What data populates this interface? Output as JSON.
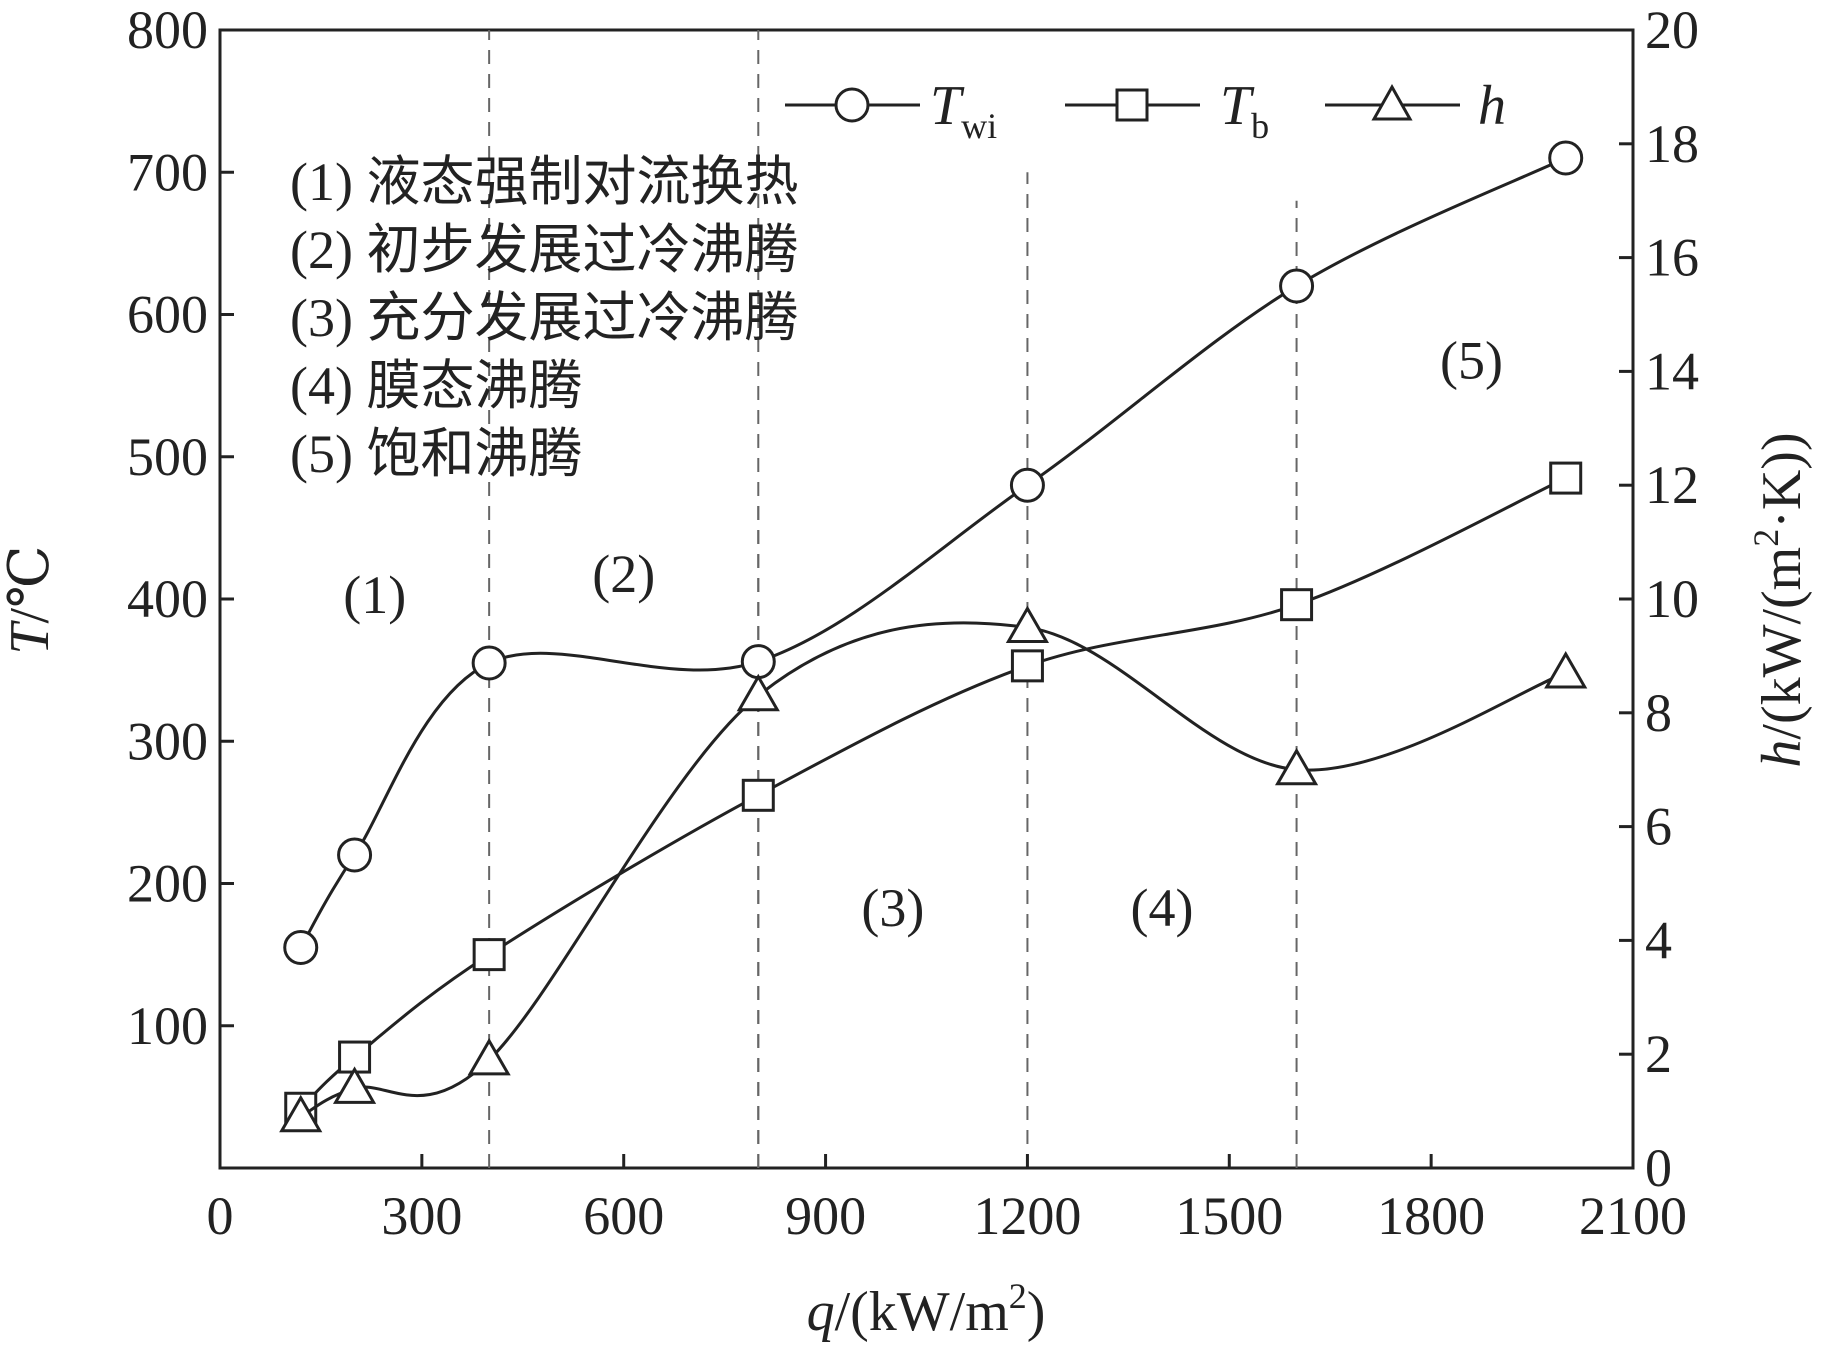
{
  "chart_data": {
    "type": "line",
    "x": [
      120,
      200,
      400,
      800,
      1200,
      1600,
      2000
    ],
    "xlabel": {
      "var": "q",
      "rest": "/(kW/m",
      "sup": "2",
      "close": ")"
    },
    "ylabel_left": {
      "var": "T",
      "rest": "/℃"
    },
    "ylabel_right": {
      "var": "h",
      "rest": "/(kW/(m",
      "sup": "2",
      "tail": "·K))"
    },
    "xlim": [
      0,
      2100
    ],
    "ylim_left": [
      0,
      800
    ],
    "ylim_right": [
      0,
      20
    ],
    "x_ticks": [
      0,
      300,
      600,
      900,
      1200,
      1500,
      1800,
      2100
    ],
    "y_left_ticks": [
      100,
      200,
      300,
      400,
      500,
      600,
      700,
      800
    ],
    "y_right_ticks": [
      0,
      2,
      4,
      6,
      8,
      10,
      12,
      14,
      16,
      18,
      20
    ],
    "grid": false,
    "legend_position": "top-right",
    "series": [
      {
        "name": "T",
        "subscript": "wi",
        "axis": "left",
        "marker": "circle",
        "values": [
          155,
          220,
          355,
          356,
          480,
          620,
          710
        ]
      },
      {
        "name": "T",
        "subscript": "b",
        "axis": "left",
        "marker": "square",
        "values": [
          42,
          78,
          150,
          262,
          353,
          396,
          485
        ]
      },
      {
        "name": "h",
        "subscript": "",
        "axis": "right",
        "marker": "triangle",
        "values": [
          0.9,
          1.4,
          1.9,
          8.3,
          9.5,
          7.0,
          8.7
        ]
      }
    ],
    "dividers": [
      {
        "x": 400,
        "y_from": 0,
        "y_to": 800
      },
      {
        "x": 800,
        "y_from": 0,
        "y_to": 800
      },
      {
        "x": 800,
        "y_from": 0,
        "y_to": 470
      },
      {
        "x": 1200,
        "y_from": 0,
        "y_to": 700
      },
      {
        "x": 1600,
        "y_from": 0,
        "y_to": 680
      }
    ],
    "region_labels": [
      {
        "label": "(1)",
        "x": 230,
        "y": 390
      },
      {
        "label": "(2)",
        "x": 600,
        "y": 405
      },
      {
        "label": "(3)",
        "x": 1000,
        "y": 170
      },
      {
        "label": "(4)",
        "x": 1400,
        "y": 170
      },
      {
        "label": "(5)",
        "x": 1860,
        "y": 555
      }
    ],
    "annotations": [
      "(1) 液态强制对流换热",
      "(2) 初步发展过冷沸腾",
      "(3) 充分发展过冷沸腾",
      "(4) 膜态沸腾",
      "(5) 饱和沸腾"
    ]
  }
}
